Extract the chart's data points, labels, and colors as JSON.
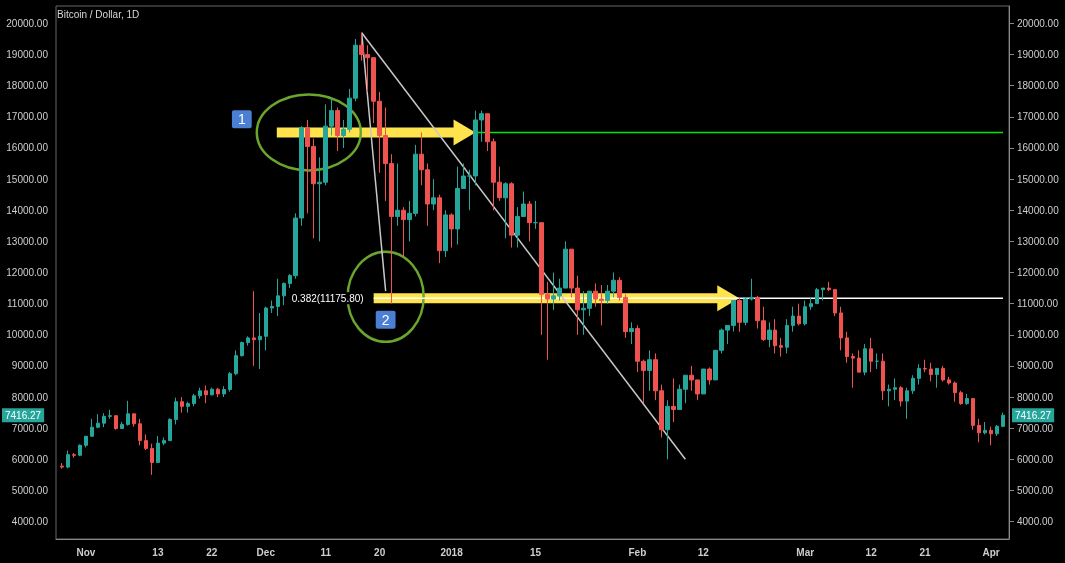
{
  "chart_data": {
    "type": "candlestick",
    "title": "Bitcoin / Dollar, 1D",
    "x": [
      "2017-10-28",
      "2017-10-29",
      "2017-10-30",
      "2017-10-31",
      "2017-11-01",
      "2017-11-02",
      "2017-11-03",
      "2017-11-04",
      "2017-11-05",
      "2017-11-06",
      "2017-11-07",
      "2017-11-08",
      "2017-11-09",
      "2017-11-10",
      "2017-11-11",
      "2017-11-12",
      "2017-11-13",
      "2017-11-14",
      "2017-11-15",
      "2017-11-16",
      "2017-11-17",
      "2017-11-18",
      "2017-11-19",
      "2017-11-20",
      "2017-11-21",
      "2017-11-22",
      "2017-11-23",
      "2017-11-24",
      "2017-11-25",
      "2017-11-26",
      "2017-11-27",
      "2017-11-28",
      "2017-11-29",
      "2017-11-30",
      "2017-12-01",
      "2017-12-02",
      "2017-12-03",
      "2017-12-04",
      "2017-12-05",
      "2017-12-06",
      "2017-12-07",
      "2017-12-08",
      "2017-12-09",
      "2017-12-10",
      "2017-12-11",
      "2017-12-12",
      "2017-12-13",
      "2017-12-14",
      "2017-12-15",
      "2017-12-16",
      "2017-12-17",
      "2017-12-18",
      "2017-12-19",
      "2017-12-20",
      "2017-12-21",
      "2017-12-22",
      "2017-12-23",
      "2017-12-24",
      "2017-12-25",
      "2017-12-26",
      "2017-12-27",
      "2017-12-28",
      "2017-12-29",
      "2017-12-30",
      "2017-12-31",
      "2018-01-01",
      "2018-01-02",
      "2018-01-03",
      "2018-01-04",
      "2018-01-05",
      "2018-01-06",
      "2018-01-07",
      "2018-01-08",
      "2018-01-09",
      "2018-01-10",
      "2018-01-11",
      "2018-01-12",
      "2018-01-13",
      "2018-01-14",
      "2018-01-15",
      "2018-01-16",
      "2018-01-17",
      "2018-01-18",
      "2018-01-19",
      "2018-01-20",
      "2018-01-21",
      "2018-01-22",
      "2018-01-23",
      "2018-01-24",
      "2018-01-25",
      "2018-01-26",
      "2018-01-27",
      "2018-01-28",
      "2018-01-29",
      "2018-01-30",
      "2018-01-31",
      "2018-02-01",
      "2018-02-02",
      "2018-02-03",
      "2018-02-04",
      "2018-02-05",
      "2018-02-06",
      "2018-02-07",
      "2018-02-08",
      "2018-02-09",
      "2018-02-10",
      "2018-02-11",
      "2018-02-12",
      "2018-02-13",
      "2018-02-14",
      "2018-02-15",
      "2018-02-16",
      "2018-02-17",
      "2018-02-18",
      "2018-02-19",
      "2018-02-20",
      "2018-02-21",
      "2018-02-22",
      "2018-02-23",
      "2018-02-24",
      "2018-02-25",
      "2018-02-26",
      "2018-02-27",
      "2018-02-28",
      "2018-03-01",
      "2018-03-02",
      "2018-03-03",
      "2018-03-04",
      "2018-03-05",
      "2018-03-06",
      "2018-03-07",
      "2018-03-08",
      "2018-03-09",
      "2018-03-10",
      "2018-03-11",
      "2018-03-12",
      "2018-03-13",
      "2018-03-14",
      "2018-03-15",
      "2018-03-16",
      "2018-03-17",
      "2018-03-18",
      "2018-03-19",
      "2018-03-20",
      "2018-03-21",
      "2018-03-22",
      "2018-03-23",
      "2018-03-24",
      "2018-03-25",
      "2018-03-26",
      "2018-03-27",
      "2018-03-28",
      "2018-03-29",
      "2018-03-30",
      "2018-03-31",
      "2018-04-01",
      "2018-04-02",
      "2018-04-03"
    ],
    "ohlc": [
      [
        5780,
        5880,
        5700,
        5750
      ],
      [
        5750,
        6280,
        5710,
        6150
      ],
      [
        6150,
        6200,
        6050,
        6130
      ],
      [
        6130,
        6480,
        6100,
        6450
      ],
      [
        6450,
        6750,
        6380,
        6740
      ],
      [
        6740,
        7300,
        6740,
        7030
      ],
      [
        7030,
        7450,
        7000,
        7160
      ],
      [
        7160,
        7480,
        7030,
        7380
      ],
      [
        7380,
        7590,
        7300,
        7400
      ],
      [
        7400,
        7420,
        6950,
        6990
      ],
      [
        6990,
        7200,
        6970,
        7120
      ],
      [
        7120,
        7880,
        7080,
        7460
      ],
      [
        7460,
        7470,
        7050,
        7140
      ],
      [
        7140,
        7300,
        6450,
        6600
      ],
      [
        6600,
        6800,
        6300,
        6350
      ],
      [
        6350,
        6500,
        5500,
        5900
      ],
      [
        5900,
        6750,
        5880,
        6520
      ],
      [
        6520,
        6700,
        6450,
        6600
      ],
      [
        6600,
        7320,
        6600,
        7280
      ],
      [
        7280,
        7980,
        7120,
        7850
      ],
      [
        7850,
        8000,
        7500,
        7700
      ],
      [
        7700,
        7850,
        7500,
        7790
      ],
      [
        7790,
        8100,
        7700,
        8040
      ],
      [
        8040,
        8300,
        7950,
        8200
      ],
      [
        8200,
        8370,
        7800,
        8070
      ],
      [
        8070,
        8300,
        8050,
        8250
      ],
      [
        8250,
        8300,
        8000,
        8100
      ],
      [
        8100,
        8350,
        8000,
        8240
      ],
      [
        8240,
        8800,
        8170,
        8750
      ],
      [
        8750,
        9500,
        8700,
        9330
      ],
      [
        9330,
        9780,
        9300,
        9750
      ],
      [
        9750,
        9950,
        9650,
        9900
      ],
      [
        9900,
        11400,
        9000,
        9840
      ],
      [
        9840,
        10700,
        8900,
        9950
      ],
      [
        9950,
        10900,
        9500,
        10860
      ],
      [
        10860,
        11100,
        10700,
        10910
      ],
      [
        10910,
        11800,
        10600,
        11250
      ],
      [
        11250,
        11680,
        10950,
        11650
      ],
      [
        11650,
        11950,
        11500,
        11900
      ],
      [
        11900,
        13900,
        11800,
        13750
      ],
      [
        13750,
        16700,
        13500,
        16650
      ],
      [
        16650,
        16900,
        13900,
        16050
      ],
      [
        16050,
        16300,
        13100,
        14850
      ],
      [
        14850,
        15700,
        13000,
        14900
      ],
      [
        14900,
        17400,
        14800,
        16700
      ],
      [
        16700,
        17600,
        16400,
        17200
      ],
      [
        17200,
        17300,
        15900,
        16400
      ],
      [
        16400,
        16900,
        16000,
        16600
      ],
      [
        16600,
        17900,
        16500,
        17600
      ],
      [
        17600,
        19500,
        17500,
        19300
      ],
      [
        19300,
        19700,
        18800,
        19000
      ],
      [
        19000,
        19300,
        17800,
        18900
      ],
      [
        18900,
        18900,
        16800,
        17500
      ],
      [
        17500,
        17800,
        15200,
        16400
      ],
      [
        16400,
        17300,
        14300,
        15500
      ],
      [
        15500,
        15800,
        11000,
        13800
      ],
      [
        13800,
        15500,
        13500,
        14000
      ],
      [
        14000,
        14100,
        12500,
        13700
      ],
      [
        13700,
        14300,
        13000,
        13900
      ],
      [
        13900,
        16100,
        13800,
        15800
      ],
      [
        15800,
        16500,
        14800,
        15300
      ],
      [
        15300,
        15500,
        13500,
        14200
      ],
      [
        14200,
        15000,
        14000,
        14400
      ],
      [
        14400,
        14500,
        12300,
        12700
      ],
      [
        12700,
        14000,
        12500,
        13850
      ],
      [
        13850,
        13900,
        12800,
        13400
      ],
      [
        13400,
        15400,
        12900,
        14700
      ],
      [
        14700,
        15500,
        14700,
        15100
      ],
      [
        15100,
        15300,
        14000,
        15100
      ],
      [
        15100,
        17200,
        14800,
        16900
      ],
      [
        16900,
        17200,
        16200,
        17100
      ],
      [
        17100,
        17100,
        15900,
        16200
      ],
      [
        16200,
        16300,
        14000,
        14900
      ],
      [
        14900,
        15400,
        14300,
        14400
      ],
      [
        14400,
        14900,
        13100,
        14850
      ],
      [
        14850,
        14900,
        12800,
        13200
      ],
      [
        13200,
        14100,
        12800,
        13800
      ],
      [
        13800,
        14600,
        13800,
        14200
      ],
      [
        14200,
        14300,
        13000,
        13600
      ],
      [
        13600,
        14300,
        13400,
        13600
      ],
      [
        13600,
        13600,
        10000,
        11300
      ],
      [
        11300,
        11700,
        9200,
        11150
      ],
      [
        11150,
        12000,
        10800,
        11250
      ],
      [
        11250,
        11800,
        11100,
        11500
      ],
      [
        11500,
        13000,
        11500,
        12750
      ],
      [
        12750,
        12750,
        11200,
        11500
      ],
      [
        11500,
        11900,
        10000,
        10800
      ],
      [
        10800,
        11400,
        10000,
        10850
      ],
      [
        10850,
        11400,
        10600,
        11400
      ],
      [
        11400,
        11650,
        10900,
        11150
      ],
      [
        11150,
        11600,
        10300,
        11100
      ],
      [
        11100,
        11600,
        11000,
        11400
      ],
      [
        11400,
        12000,
        11200,
        11750
      ],
      [
        11750,
        11850,
        11100,
        11200
      ],
      [
        11200,
        11300,
        9900,
        10100
      ],
      [
        10100,
        10400,
        9700,
        10200
      ],
      [
        10200,
        10300,
        8800,
        9150
      ],
      [
        9150,
        9200,
        7800,
        8850
      ],
      [
        8850,
        9500,
        8200,
        9200
      ],
      [
        9200,
        9400,
        7900,
        8200
      ],
      [
        8200,
        8400,
        6700,
        6950
      ],
      [
        6950,
        7900,
        6000,
        7700
      ],
      [
        7700,
        8600,
        7200,
        7600
      ],
      [
        7600,
        8400,
        7600,
        8250
      ],
      [
        8250,
        8700,
        7800,
        8700
      ],
      [
        8700,
        9000,
        8200,
        8550
      ],
      [
        8550,
        8550,
        7900,
        8100
      ],
      [
        8100,
        8900,
        8100,
        8900
      ],
      [
        8900,
        8950,
        8400,
        8550
      ],
      [
        8550,
        9500,
        8550,
        9500
      ],
      [
        9500,
        10200,
        9400,
        10150
      ],
      [
        10150,
        10300,
        9700,
        10300
      ],
      [
        10300,
        11100,
        10100,
        11100
      ],
      [
        11100,
        11200,
        10100,
        10400
      ],
      [
        10400,
        11200,
        10300,
        11150
      ],
      [
        11150,
        11800,
        11100,
        11200
      ],
      [
        11200,
        11250,
        10200,
        10450
      ],
      [
        10450,
        10900,
        9800,
        9850
      ],
      [
        9850,
        10400,
        9600,
        10150
      ],
      [
        10150,
        10500,
        9400,
        9650
      ],
      [
        9650,
        9900,
        9300,
        9600
      ],
      [
        9600,
        10500,
        9400,
        10300
      ],
      [
        10300,
        10900,
        10100,
        10600
      ],
      [
        10600,
        11000,
        10300,
        10350
      ],
      [
        10350,
        11100,
        10300,
        10900
      ],
      [
        10900,
        11200,
        10800,
        11000
      ],
      [
        11000,
        11500,
        11000,
        11450
      ],
      [
        11450,
        11500,
        11100,
        11500
      ],
      [
        11500,
        11700,
        11400,
        11450
      ],
      [
        11450,
        11450,
        10600,
        10700
      ],
      [
        10700,
        10900,
        9500,
        9900
      ],
      [
        9900,
        10100,
        9100,
        9300
      ],
      [
        9300,
        9400,
        8300,
        9250
      ],
      [
        9250,
        9500,
        8800,
        8800
      ],
      [
        8800,
        9700,
        8700,
        9550
      ],
      [
        9550,
        9900,
        8800,
        9150
      ],
      [
        9150,
        9400,
        8900,
        9150
      ],
      [
        9150,
        9400,
        7900,
        8200
      ],
      [
        8200,
        8400,
        7700,
        8250
      ],
      [
        8250,
        8600,
        7900,
        8300
      ],
      [
        8300,
        8350,
        7700,
        7870
      ],
      [
        7870,
        8300,
        7300,
        8200
      ],
      [
        8200,
        8700,
        8100,
        8600
      ],
      [
        8600,
        9050,
        8400,
        8920
      ],
      [
        8920,
        9200,
        8800,
        8900
      ],
      [
        8900,
        9100,
        8500,
        8720
      ],
      [
        8720,
        8930,
        8300,
        8920
      ],
      [
        8920,
        9000,
        8500,
        8550
      ],
      [
        8550,
        8650,
        8400,
        8450
      ],
      [
        8450,
        8500,
        7850,
        8140
      ],
      [
        8140,
        8200,
        7750,
        7790
      ],
      [
        7790,
        8100,
        7750,
        7950
      ],
      [
        7950,
        7950,
        6950,
        7090
      ],
      [
        7090,
        7300,
        6550,
        6850
      ],
      [
        6850,
        7200,
        6800,
        6930
      ],
      [
        6930,
        7050,
        6450,
        6820
      ],
      [
        6820,
        7100,
        6750,
        7060
      ],
      [
        7060,
        7500,
        7030,
        7416.27
      ]
    ],
    "series": [
      {
        "type": "line",
        "color": "#00e600",
        "x": [
          "2018-01-05",
          "2018-04-03"
        ],
        "values": [
          16500,
          16500
        ]
      },
      {
        "type": "line",
        "name": "0.382(11175.80)",
        "color": "#ffffff",
        "x": [
          "2017-12-19",
          "2018-02-18",
          "2018-04-03"
        ],
        "values": [
          11175.8,
          11175.8,
          11175.8
        ]
      },
      {
        "type": "line",
        "color": "#c8c8c8",
        "x": [
          "2017-12-17",
          "2018-02-09"
        ],
        "values": [
          19700,
          6000
        ]
      },
      {
        "type": "line",
        "color": "#c8c8c8",
        "x": [
          "2017-12-17",
          "2017-12-21"
        ],
        "values": [
          19700,
          11400
        ]
      }
    ],
    "ylim": [
      3440,
      20560
    ],
    "yticks": [
      {
        "value": 4000,
        "label": "4000.00"
      },
      {
        "value": 5000,
        "label": "5000.00"
      },
      {
        "value": 6000,
        "label": "6000.00"
      },
      {
        "value": 7000,
        "label": "7000.00"
      },
      {
        "value": 8000,
        "label": "8000.00"
      },
      {
        "value": 9000,
        "label": "9000.00"
      },
      {
        "value": 10000,
        "label": "10000.00"
      },
      {
        "value": 11000,
        "label": "11000.00"
      },
      {
        "value": 12000,
        "label": "12000.00"
      },
      {
        "value": 13000,
        "label": "13000.00"
      },
      {
        "value": 14000,
        "label": "14000.00"
      },
      {
        "value": 15000,
        "label": "15000.00"
      },
      {
        "value": 16000,
        "label": "16000.00"
      },
      {
        "value": 17000,
        "label": "17000.00"
      },
      {
        "value": 18000,
        "label": "18000.00"
      },
      {
        "value": 19000,
        "label": "19000.00"
      },
      {
        "value": 20000,
        "label": "20000.00"
      }
    ],
    "y2lim": [
      3440,
      20560
    ],
    "y2ticks": [
      {
        "value": 4000,
        "label": "4000.00"
      },
      {
        "value": 5000,
        "label": "5000.00"
      },
      {
        "value": 6000,
        "label": "6000.00"
      },
      {
        "value": 7000,
        "label": "7000.00"
      },
      {
        "value": 8000,
        "label": "8000.00"
      },
      {
        "value": 9000,
        "label": "9000.00"
      },
      {
        "value": 10000,
        "label": "10000.00"
      },
      {
        "value": 11000,
        "label": "11000.00"
      },
      {
        "value": 12000,
        "label": "12000.00"
      },
      {
        "value": 13000,
        "label": "13000.00"
      },
      {
        "value": 14000,
        "label": "14000.00"
      },
      {
        "value": 15000,
        "label": "15000.00"
      },
      {
        "value": 16000,
        "label": "16000.00"
      },
      {
        "value": 17000,
        "label": "17000.00"
      },
      {
        "value": 18000,
        "label": "18000.00"
      },
      {
        "value": 19000,
        "label": "19000.00"
      },
      {
        "value": 20000,
        "label": "20000.00"
      }
    ],
    "xticks": [
      {
        "value": "2017-11-01",
        "label": "Nov"
      },
      {
        "value": "2017-11-13",
        "label": "13"
      },
      {
        "value": "2017-11-22",
        "label": "22"
      },
      {
        "value": "2017-12-01",
        "label": "Dec"
      },
      {
        "value": "2017-12-11",
        "label": "11"
      },
      {
        "value": "2017-12-20",
        "label": "20"
      },
      {
        "value": "2018-01-01",
        "label": "2018"
      },
      {
        "value": "2018-01-15",
        "label": "15"
      },
      {
        "value": "2018-02-01",
        "label": "Feb"
      },
      {
        "value": "2018-02-12",
        "label": "12"
      },
      {
        "value": "2018-03-01",
        "label": "Mar"
      },
      {
        "value": "2018-03-12",
        "label": "12"
      },
      {
        "value": "2018-03-21",
        "label": "21"
      },
      {
        "value": "2018-04-01",
        "label": "Apr"
      }
    ],
    "annotations": [
      {
        "text": "1",
        "x": "2017-11-27",
        "y": 16920
      },
      {
        "text": "2",
        "x": "2017-12-21",
        "y": 10480
      },
      "7416.27"
    ],
    "xlim": [
      "2017-10-27",
      "2018-04-04"
    ],
    "grid": false
  }
}
